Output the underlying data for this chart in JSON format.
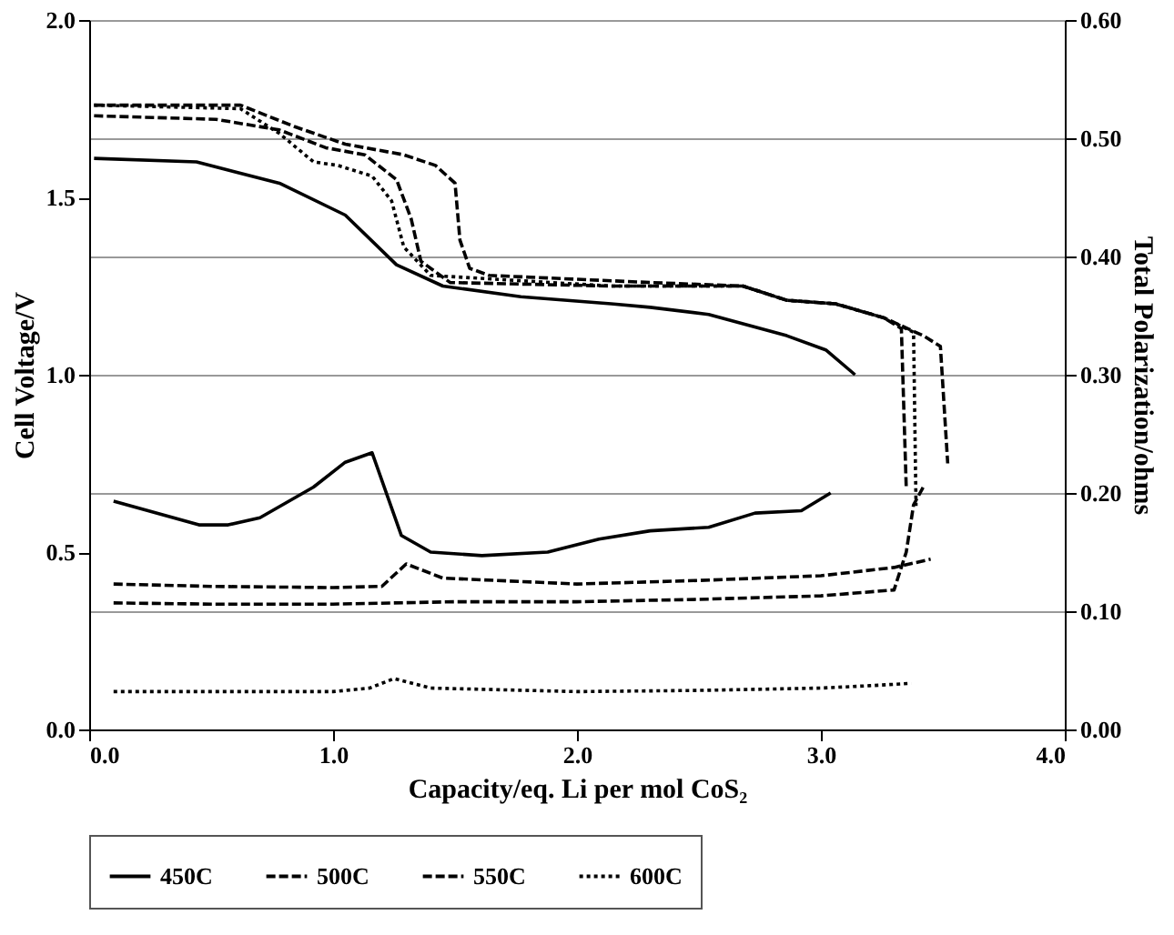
{
  "chart_data": {
    "type": "line",
    "xlabel": "Capacity/eq. Li per mol CoS₂",
    "ylabel": "Cell Voltage/V",
    "y2label": "Total Polarization/ohms",
    "xlim": [
      0,
      4
    ],
    "ylim": [
      0,
      2
    ],
    "y2lim": [
      0,
      0.6
    ],
    "xticks": [
      {
        "value": 0,
        "label": "0.0"
      },
      {
        "value": 1,
        "label": "1.0"
      },
      {
        "value": 2,
        "label": "2.0"
      },
      {
        "value": 3,
        "label": "3.0"
      },
      {
        "value": 4,
        "label": "4.0"
      }
    ],
    "yticks": [
      {
        "value": 0,
        "label": "0.0"
      },
      0.5,
      {
        "value": 1,
        "label": "1.0"
      },
      1.5,
      {
        "value": 2,
        "label": "2.0"
      }
    ],
    "y2ticks": [
      {
        "value": 0,
        "label": "0.00"
      },
      {
        "value": 0.1,
        "label": "0.10"
      },
      {
        "value": 0.2,
        "label": "0.20"
      },
      {
        "value": 0.3,
        "label": "0.30"
      },
      {
        "value": 0.4,
        "label": "0.40"
      },
      {
        "value": 0.5,
        "label": "0.50"
      },
      {
        "value": 0.6,
        "label": "0.60"
      }
    ],
    "grid": "y2",
    "legend": "bottom",
    "marker": "none",
    "series": [
      {
        "name": "450C",
        "color": "#000000",
        "line_style": "solid",
        "x": [
          0.02,
          0.44,
          0.78,
          1.05,
          1.26,
          1.45,
          1.77,
          2.14,
          2.3,
          2.54,
          2.86,
          3.02,
          3.14
        ],
        "values": [
          1.61,
          1.6,
          1.54,
          1.45,
          1.31,
          1.25,
          1.22,
          1.2,
          1.19,
          1.17,
          1.11,
          1.07,
          1.0
        ]
      },
      {
        "name": "500C",
        "color": "#000000",
        "line_style": "dashed",
        "x": [
          0.02,
          0.62,
          0.84,
          1.05,
          1.29,
          1.42,
          1.5,
          1.52,
          1.56,
          1.64,
          2.3,
          2.68,
          2.86,
          3.06,
          3.26,
          3.42,
          3.49,
          3.52
        ],
        "values": [
          1.76,
          1.76,
          1.7,
          1.65,
          1.62,
          1.59,
          1.54,
          1.38,
          1.3,
          1.28,
          1.26,
          1.25,
          1.21,
          1.2,
          1.16,
          1.11,
          1.08,
          0.75
        ]
      },
      {
        "name": "550C",
        "color": "#000000",
        "line_style": "dashed",
        "x": [
          0.02,
          0.52,
          0.78,
          0.97,
          1.13,
          1.26,
          1.32,
          1.36,
          1.48,
          2.14,
          2.68,
          2.86,
          3.06,
          3.26,
          3.33,
          3.35
        ],
        "values": [
          1.73,
          1.72,
          1.69,
          1.64,
          1.62,
          1.55,
          1.44,
          1.32,
          1.26,
          1.25,
          1.25,
          1.21,
          1.2,
          1.16,
          1.13,
          0.68
        ]
      },
      {
        "name": "600C",
        "color": "#000000",
        "line_style": "dotted",
        "x": [
          0.02,
          0.62,
          0.78,
          0.92,
          1.02,
          1.16,
          1.24,
          1.29,
          1.4,
          2.14,
          2.68,
          2.86,
          3.06,
          3.26,
          3.38,
          3.39
        ],
        "values": [
          1.76,
          1.75,
          1.68,
          1.6,
          1.59,
          1.56,
          1.49,
          1.36,
          1.28,
          1.25,
          1.25,
          1.21,
          1.2,
          1.16,
          1.12,
          0.63
        ]
      },
      {
        "color": "#000000",
        "line_style": "solid",
        "axis": "y2",
        "x": [
          0.1,
          0.45,
          0.57,
          0.7,
          0.92,
          1.05,
          1.16,
          1.28,
          1.4,
          1.61,
          1.88,
          2.09,
          2.3,
          2.54,
          2.73,
          2.92,
          3.04
        ],
        "values": [
          0.193,
          0.173,
          0.173,
          0.179,
          0.205,
          0.226,
          0.234,
          0.164,
          0.15,
          0.147,
          0.15,
          0.161,
          0.168,
          0.171,
          0.183,
          0.185,
          0.2
        ]
      },
      {
        "color": "#000000",
        "line_style": "dashed",
        "axis": "y2",
        "x": [
          0.1,
          0.5,
          1.0,
          1.5,
          2.0,
          2.5,
          3.0,
          3.3,
          3.35,
          3.38,
          3.42
        ],
        "values": [
          0.107,
          0.106,
          0.106,
          0.108,
          0.108,
          0.11,
          0.113,
          0.118,
          0.15,
          0.19,
          0.205
        ]
      },
      {
        "color": "#000000",
        "line_style": "dashed",
        "axis": "y2",
        "x": [
          0.1,
          0.5,
          1.0,
          1.2,
          1.3,
          1.45,
          2.0,
          2.5,
          3.0,
          3.3,
          3.45
        ],
        "values": [
          0.123,
          0.121,
          0.12,
          0.121,
          0.14,
          0.128,
          0.123,
          0.126,
          0.13,
          0.137,
          0.144
        ]
      },
      {
        "color": "#000000",
        "line_style": "dotted",
        "axis": "y2",
        "x": [
          0.1,
          1.0,
          1.15,
          1.25,
          1.4,
          2.0,
          2.5,
          3.0,
          3.2,
          3.37
        ],
        "values": [
          0.032,
          0.032,
          0.035,
          0.043,
          0.035,
          0.032,
          0.033,
          0.035,
          0.037,
          0.039
        ]
      }
    ]
  }
}
